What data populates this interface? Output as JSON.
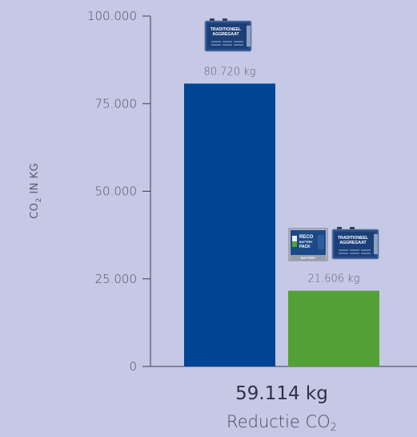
{
  "chart_data": {
    "type": "bar",
    "categories": [
      "",
      ""
    ],
    "values": [
      80720,
      21606
    ],
    "data_labels": [
      "80.720 kg",
      "21.606 kg"
    ],
    "colors": [
      "#004494",
      "#53a136"
    ],
    "ylim": [
      0,
      100000
    ],
    "yticks": [
      0,
      25000,
      50000,
      75000,
      100000
    ],
    "ytick_labels": [
      "0",
      "25.000",
      "50.000",
      "75.000",
      "100.000"
    ],
    "ylabel": {
      "main": "CO",
      "sub": "2",
      "rest": " IN KG"
    },
    "grid": false,
    "legend": "none",
    "icons": {
      "generator_text_line1": "TRADITIONEEL",
      "generator_text_line2": "AGGREGAAT",
      "battery_text_line1": "RECO",
      "battery_text_line2": "BATTERY",
      "battery_text_line3": "PACK",
      "battery_footer": "BATTERY"
    }
  },
  "summary": {
    "reduction_value": "59.114 kg",
    "reduction_label": "Reductie CO",
    "reduction_label_sub": "2"
  }
}
